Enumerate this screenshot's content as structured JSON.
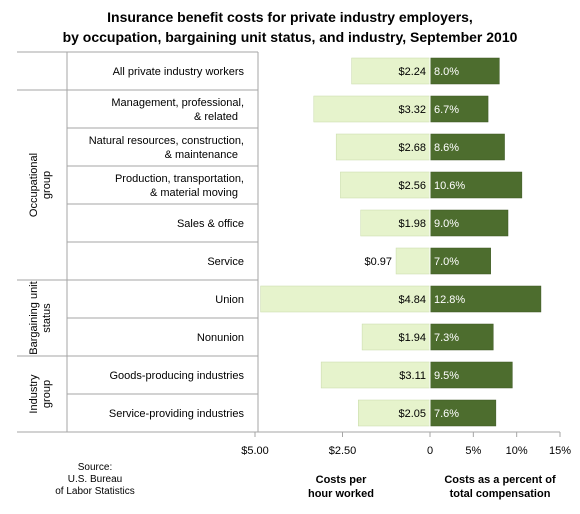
{
  "chart_data": {
    "type": "bar",
    "title": [
      "Insurance benefit costs for private industry employers,",
      "by occupation, bargaining unit status, and industry, September 2010"
    ],
    "groups": [
      {
        "label": "Occupational group",
        "rows": [
          1,
          6
        ]
      },
      {
        "label": "Bargaining unit status",
        "rows": [
          6,
          8
        ]
      },
      {
        "label": "Industry group",
        "rows": [
          8,
          10
        ]
      }
    ],
    "categories": [
      [
        "All private industry workers"
      ],
      [
        "Management, professional,",
        "& related"
      ],
      [
        "Natural resources, construction,",
        "& maintenance"
      ],
      [
        "Production, transportation,",
        "& material moving"
      ],
      [
        "Sales & office"
      ],
      [
        "Service"
      ],
      [
        "Union"
      ],
      [
        "Nonunion"
      ],
      [
        "Goods-producing industries"
      ],
      [
        "Service-providing industries"
      ]
    ],
    "series": [
      {
        "name": "Costs per hour worked",
        "color": "#e6f3cc",
        "values": [
          2.24,
          3.32,
          2.68,
          2.56,
          1.98,
          0.97,
          4.84,
          1.94,
          3.11,
          2.05
        ],
        "labels": [
          "$2.24",
          "$3.32",
          "$2.68",
          "$2.56",
          "$1.98",
          "$0.97",
          "$4.84",
          "$1.94",
          "$3.11",
          "$2.05"
        ],
        "xlim": [
          0,
          5
        ],
        "ticks": [
          "$5.00",
          "$2.50",
          "0"
        ],
        "xlabel": [
          "Costs per",
          "hour worked"
        ]
      },
      {
        "name": "Costs as a percent of total compensation",
        "color": "#4d6d2e",
        "values": [
          8.0,
          6.7,
          8.6,
          10.6,
          9.0,
          7.0,
          12.8,
          7.3,
          9.5,
          7.6
        ],
        "labels": [
          "8.0%",
          "6.7%",
          "8.6%",
          "10.6%",
          "9.0%",
          "7.0%",
          "12.8%",
          "7.3%",
          "9.5%",
          "7.6%"
        ],
        "xlim": [
          0,
          15
        ],
        "ticks": [
          "5%",
          "10%",
          "15%"
        ],
        "xlabel": [
          "Costs as a percent of",
          "total compensation"
        ]
      }
    ],
    "source": [
      "Source:",
      "U.S. Bureau",
      "of Labor Statistics"
    ]
  }
}
